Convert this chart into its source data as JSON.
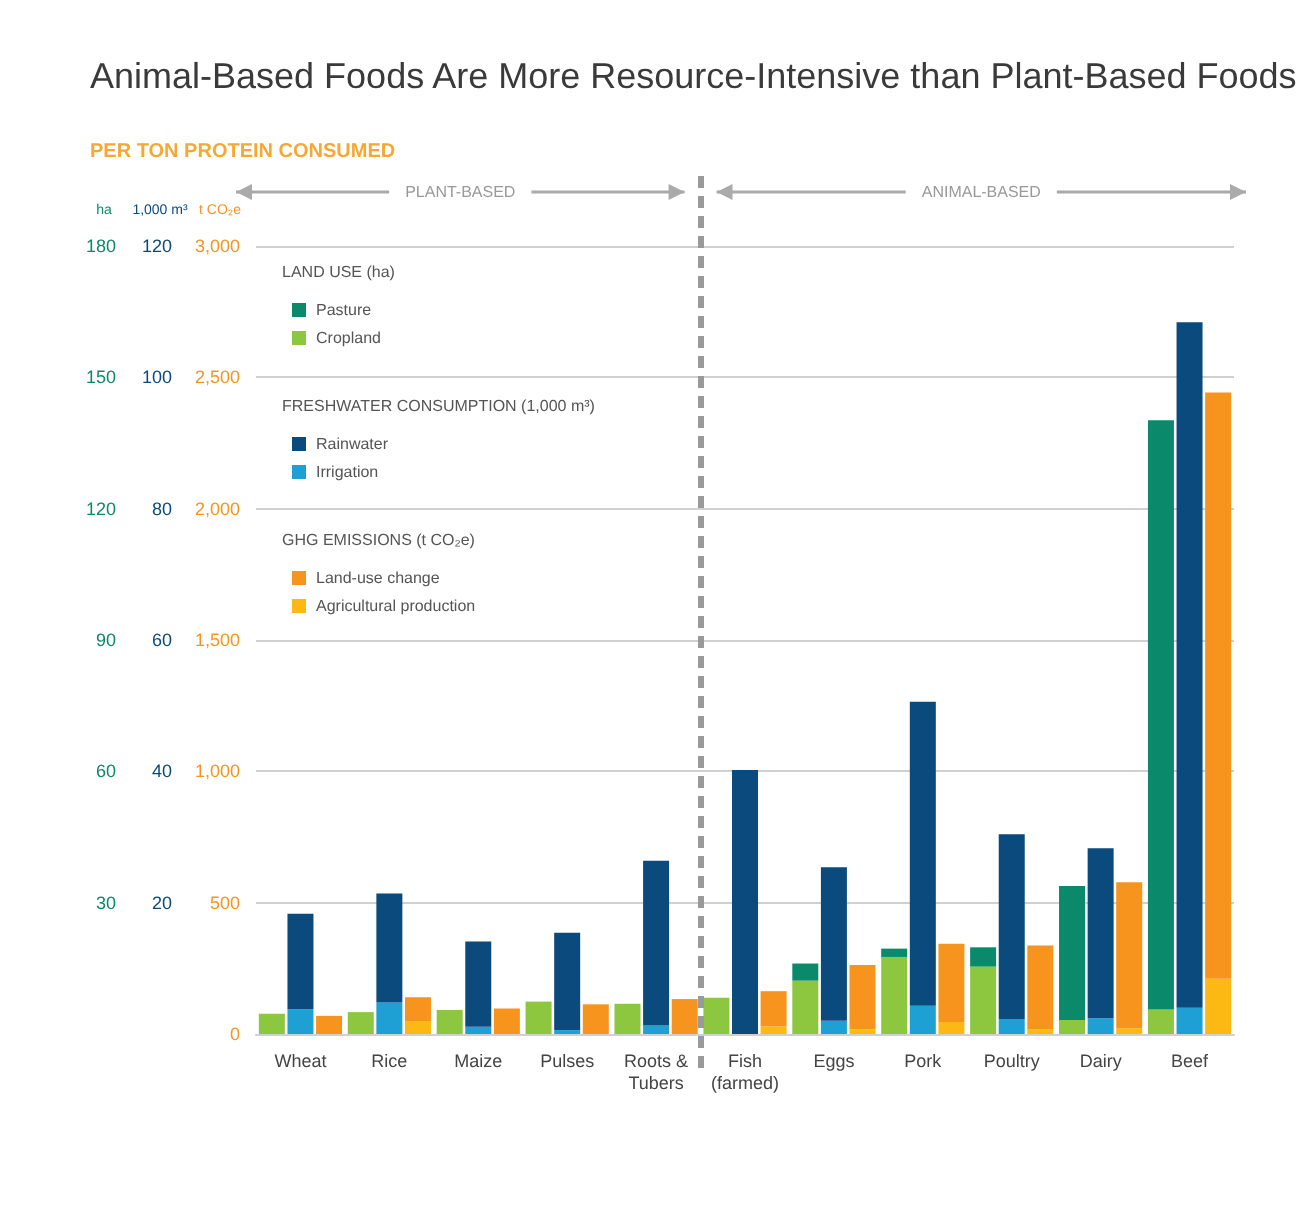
{
  "chart_data": {
    "type": "bar",
    "title": "Animal-Based Foods Are More Resource-Intensive than Plant-Based Foods",
    "subtitle": "PER TON PROTEIN CONSUMED",
    "categories": [
      "Wheat",
      "Rice",
      "Maize",
      "Pulses",
      "Roots &\nTubers",
      "Fish\n(farmed)",
      "Eggs",
      "Pork",
      "Poultry",
      "Dairy",
      "Beef"
    ],
    "ylabel": "t CO₂e",
    "y2label": "1,000 m³",
    "y3label": "ha",
    "stacked": true,
    "series": [
      {
        "name": "Cropland",
        "color": "#8dc63f",
        "axis": "y3",
        "values": [
          4.6,
          5.0,
          5.5,
          7.4,
          6.9,
          8.3,
          12.2,
          17.6,
          15.4,
          3.2,
          5.6
        ]
      },
      {
        "name": "Pasture",
        "color": "#0a8a6a",
        "axis": "y3",
        "values": [
          null,
          null,
          null,
          null,
          null,
          null,
          3.9,
          1.9,
          4.4,
          30.6,
          134.6
        ]
      },
      {
        "name": "Irrigation",
        "color": "#1ea0d4",
        "axis": "y2",
        "values": [
          3.8,
          4.8,
          1.1,
          0.6,
          1.3,
          null,
          2.0,
          4.3,
          2.3,
          2.4,
          4.0
        ]
      },
      {
        "name": "Rainwater",
        "color": "#0b4a7d",
        "axis": "y2",
        "values": [
          14.5,
          16.6,
          13.0,
          14.8,
          25.1,
          40.2,
          23.4,
          46.3,
          28.1,
          25.9,
          104.4
        ]
      },
      {
        "name": "Agricultural production",
        "color": "#fdb913",
        "axis": "y",
        "values": [
          null,
          47,
          null,
          null,
          null,
          29,
          17,
          46,
          17,
          22,
          210
        ]
      },
      {
        "name": "Land-use change",
        "color": "#f7941d",
        "axis": "y",
        "values": [
          69,
          93,
          97,
          113,
          133,
          134,
          246,
          298,
          320,
          556,
          2232
        ]
      }
    ],
    "ylim": [
      0,
      3000
    ],
    "yticks": [
      0,
      500,
      {
        "value": 1000,
        "label": "1,000"
      },
      {
        "value": 1500,
        "label": "1,500"
      },
      {
        "value": 2000,
        "label": "2,000"
      },
      {
        "value": 2500,
        "label": "2,500"
      },
      {
        "value": 3000,
        "label": "3,000"
      }
    ],
    "y2lim": [
      0,
      120
    ],
    "y2ticks": [
      20,
      40,
      60,
      80,
      100,
      120
    ],
    "y3lim": [
      0,
      180
    ],
    "y3ticks": [
      30,
      60,
      90,
      120,
      150,
      180
    ],
    "annotations": [
      "LAND USE (ha)",
      "FRESHWATER CONSUMPTION (1,000 m³)",
      "GHG EMISSIONS (t CO₂e)",
      "PLANT-BASED",
      "ANIMAL-BASED"
    ],
    "grid": "y",
    "legend": "top left"
  }
}
